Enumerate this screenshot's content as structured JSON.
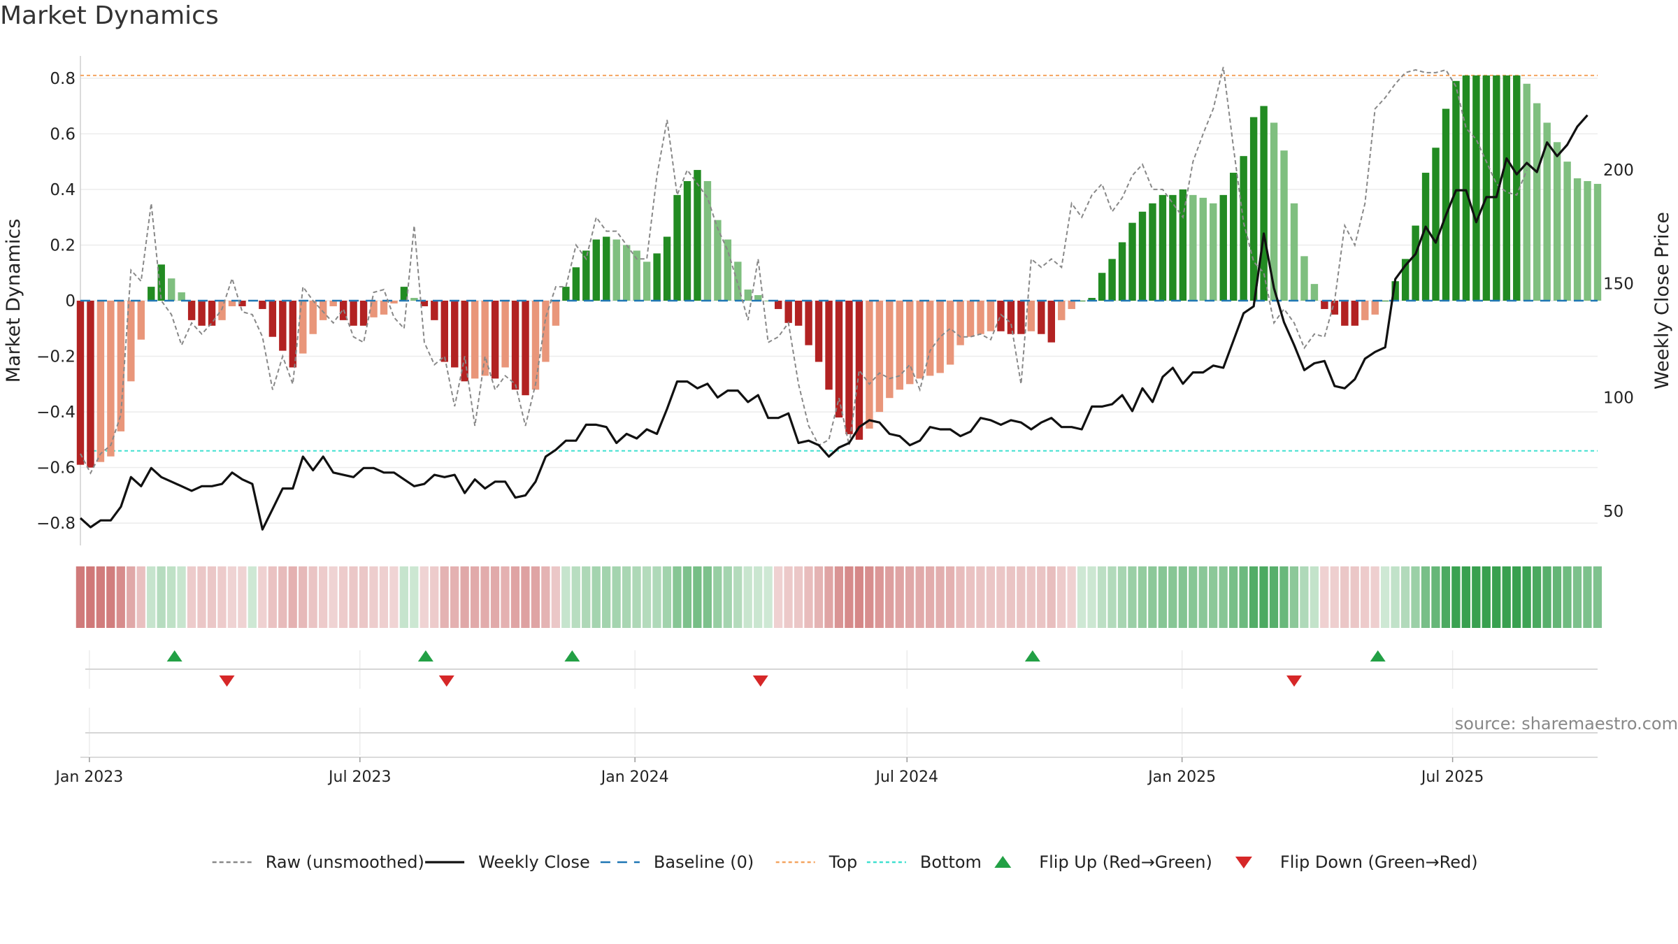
{
  "chart_data": {
    "title": "Market Dynamics",
    "type": "bar",
    "ylabel": "Market Dynamics",
    "y2label": "Weekly Close Price",
    "ylim": [
      -0.88,
      0.88
    ],
    "y2lim": [
      35,
      250
    ],
    "yticks": [
      -0.8,
      -0.6,
      -0.4,
      -0.2,
      0,
      0.2,
      0.4,
      0.6,
      0.8
    ],
    "y2ticks": [
      50,
      100,
      150,
      200
    ],
    "x_start": "2022-12-26",
    "x_end": "2025-10-06",
    "x_interval_days": 7,
    "xticks": [
      {
        "date": "2023-01-01",
        "label": "Jan 2023"
      },
      {
        "date": "2023-07-01",
        "label": "Jul 2023"
      },
      {
        "date": "2024-01-01",
        "label": "Jan 2024"
      },
      {
        "date": "2024-07-01",
        "label": "Jul 2024"
      },
      {
        "date": "2025-01-01",
        "label": "Jan 2025"
      },
      {
        "date": "2025-07-01",
        "label": "Jul 2025"
      }
    ],
    "top_line": 0.81,
    "bottom_line": -0.54,
    "baseline": 0,
    "grid": true,
    "legend_position": "bottom-center",
    "colors": {
      "strong_green": "#228b22",
      "light_green": "#7fbf7f",
      "strong_red": "#b22222",
      "light_red": "#e9967a",
      "close_line": "#111111",
      "raw_line": "#888888",
      "baseline": "#1f77b4",
      "top": "#f4a460",
      "bottom": "#40e0d0",
      "flip_up": "#22a045",
      "flip_down": "#d62728"
    },
    "series": [
      {
        "name": "Market Dynamics",
        "values": [
          -0.59,
          -0.6,
          -0.58,
          -0.56,
          -0.47,
          -0.29,
          -0.14,
          0.05,
          0.13,
          0.08,
          0.03,
          -0.07,
          -0.09,
          -0.09,
          -0.07,
          -0.02,
          -0.02,
          -0.0,
          -0.03,
          -0.13,
          -0.18,
          -0.24,
          -0.19,
          -0.12,
          -0.07,
          -0.02,
          -0.07,
          -0.09,
          -0.09,
          -0.06,
          -0.05,
          -0.01,
          0.05,
          0.01,
          -0.02,
          -0.07,
          -0.22,
          -0.24,
          -0.29,
          -0.28,
          -0.27,
          -0.28,
          -0.24,
          -0.32,
          -0.34,
          -0.32,
          -0.22,
          -0.09,
          0.05,
          0.12,
          0.18,
          0.22,
          0.23,
          0.22,
          0.2,
          0.18,
          0.14,
          0.17,
          0.23,
          0.38,
          0.43,
          0.47,
          0.43,
          0.29,
          0.22,
          0.14,
          0.04,
          0.02,
          -0.0,
          -0.03,
          -0.08,
          -0.09,
          -0.16,
          -0.22,
          -0.32,
          -0.42,
          -0.48,
          -0.5,
          -0.46,
          -0.4,
          -0.35,
          -0.32,
          -0.3,
          -0.28,
          -0.27,
          -0.26,
          -0.23,
          -0.16,
          -0.13,
          -0.12,
          -0.11,
          -0.11,
          -0.12,
          -0.12,
          -0.11,
          -0.12,
          -0.15,
          -0.07,
          -0.03,
          0.0,
          0.01,
          0.1,
          0.15,
          0.21,
          0.28,
          0.32,
          0.35,
          0.38,
          0.38,
          0.4,
          0.38,
          0.37,
          0.35,
          0.38,
          0.46,
          0.52,
          0.66,
          0.7,
          0.64,
          0.54,
          0.35,
          0.16,
          0.06,
          -0.03,
          -0.05,
          -0.09,
          -0.09,
          -0.07,
          -0.05,
          -0.0,
          0.07,
          0.15,
          0.27,
          0.46,
          0.55,
          0.69,
          0.79,
          0.81,
          0.81,
          0.81,
          0.81,
          0.81,
          0.81,
          0.78,
          0.71,
          0.64,
          0.57,
          0.5,
          0.44,
          0.43,
          0.42
        ]
      },
      {
        "name": "Raw (unsmoothed)",
        "values": [
          -0.55,
          -0.62,
          -0.55,
          -0.52,
          -0.41,
          0.11,
          0.07,
          0.35,
          0.0,
          -0.05,
          -0.16,
          -0.08,
          -0.12,
          -0.08,
          -0.03,
          0.08,
          -0.04,
          -0.05,
          -0.13,
          -0.32,
          -0.2,
          -0.3,
          0.05,
          0.0,
          -0.04,
          -0.08,
          -0.03,
          -0.13,
          -0.15,
          0.03,
          0.04,
          -0.06,
          -0.1,
          0.27,
          -0.15,
          -0.23,
          -0.2,
          -0.38,
          -0.2,
          -0.45,
          -0.2,
          -0.32,
          -0.27,
          -0.3,
          -0.45,
          -0.3,
          -0.06,
          0.05,
          0.05,
          0.2,
          0.15,
          0.3,
          0.25,
          0.25,
          0.2,
          0.15,
          0.15,
          0.45,
          0.65,
          0.38,
          0.47,
          0.42,
          0.37,
          0.26,
          0.18,
          0.06,
          -0.07,
          0.15,
          -0.15,
          -0.13,
          -0.08,
          -0.3,
          -0.45,
          -0.52,
          -0.5,
          -0.35,
          -0.52,
          -0.25,
          -0.3,
          -0.26,
          -0.28,
          -0.27,
          -0.23,
          -0.32,
          -0.18,
          -0.13,
          -0.1,
          -0.13,
          -0.13,
          -0.12,
          -0.14,
          -0.05,
          -0.08,
          -0.3,
          0.15,
          0.12,
          0.15,
          0.12,
          0.35,
          0.3,
          0.38,
          0.42,
          0.32,
          0.37,
          0.45,
          0.49,
          0.4,
          0.4,
          0.35,
          0.3,
          0.5,
          0.6,
          0.69,
          0.84,
          0.55,
          0.28,
          0.14,
          0.1,
          -0.08,
          -0.03,
          -0.08,
          -0.17,
          -0.12,
          -0.13,
          0.0,
          0.27,
          0.2,
          0.35,
          0.69,
          0.73,
          0.78,
          0.82,
          0.83,
          0.82,
          0.82,
          0.83,
          0.77,
          0.62,
          0.58,
          0.5,
          0.42,
          0.39,
          0.38,
          0.47
        ]
      },
      {
        "name": "Weekly Close",
        "values": [
          47,
          43,
          46,
          46,
          52,
          65,
          61,
          69,
          65,
          63,
          61,
          59,
          61,
          61,
          62,
          67,
          64,
          62,
          42,
          51,
          60,
          60,
          74,
          68,
          74,
          67,
          66,
          65,
          69,
          69,
          67,
          67,
          64,
          61,
          62,
          66,
          65,
          66,
          58,
          64,
          60,
          63,
          63,
          56,
          57,
          63,
          74,
          77,
          81,
          81,
          88,
          88,
          87,
          80,
          84,
          82,
          86,
          84,
          95,
          107,
          107,
          104,
          106,
          100,
          103,
          103,
          98,
          101,
          91,
          91,
          93,
          80,
          81,
          79,
          74,
          78,
          80,
          87,
          90,
          89,
          84,
          83,
          79,
          81,
          87,
          86,
          86,
          83,
          85,
          91,
          90,
          88,
          90,
          89,
          86,
          89,
          91,
          87,
          87,
          86,
          96,
          96,
          97,
          101,
          94,
          104,
          98,
          109,
          113,
          106,
          111,
          111,
          114,
          113,
          125,
          137,
          140,
          172,
          148,
          133,
          123,
          112,
          115,
          116,
          105,
          104,
          108,
          117,
          120,
          122,
          152,
          158,
          163,
          175,
          168,
          180,
          191,
          191,
          177,
          188,
          188,
          205,
          198,
          203,
          199,
          212,
          206,
          211,
          219,
          224
        ]
      }
    ],
    "flips_up": [
      "2023-02-27",
      "2023-08-14",
      "2023-11-20",
      "2024-09-23",
      "2025-05-12"
    ],
    "flips_down": [
      "2023-04-03",
      "2023-08-28",
      "2024-03-25",
      "2025-03-17"
    ],
    "regime_strip": [
      -0.59,
      -0.6,
      -0.58,
      -0.56,
      -0.47,
      -0.29,
      -0.14,
      0.05,
      0.13,
      0.08,
      0.03,
      -0.07,
      -0.09,
      -0.09,
      -0.07,
      -0.02,
      -0.02,
      -0.0,
      -0.03,
      -0.13,
      -0.18,
      -0.24,
      -0.19,
      -0.12,
      -0.07,
      -0.02,
      -0.07,
      -0.09,
      -0.09,
      -0.06,
      -0.05,
      -0.01,
      0.05,
      0.01,
      -0.02,
      -0.07,
      -0.22,
      -0.24,
      -0.29,
      -0.28,
      -0.27,
      -0.28,
      -0.24,
      -0.32,
      -0.34,
      -0.32,
      -0.22,
      -0.09,
      0.05,
      0.12,
      0.18,
      0.22,
      0.23,
      0.22,
      0.2,
      0.18,
      0.14,
      0.17,
      0.23,
      0.38,
      0.43,
      0.47,
      0.43,
      0.29,
      0.22,
      0.14,
      0.04,
      0.02,
      -0.0,
      -0.03,
      -0.08,
      -0.09,
      -0.16,
      -0.22,
      -0.32,
      -0.42,
      -0.48,
      -0.5,
      -0.46,
      -0.4,
      -0.35,
      -0.32,
      -0.3,
      -0.28,
      -0.27,
      -0.26,
      -0.23,
      -0.16,
      -0.13,
      -0.12,
      -0.11,
      -0.11,
      -0.12,
      -0.12,
      -0.11,
      -0.12,
      -0.15,
      -0.07,
      -0.03,
      0.0,
      0.01,
      0.1,
      0.15,
      0.21,
      0.28,
      0.32,
      0.35,
      0.38,
      0.38,
      0.4,
      0.38,
      0.37,
      0.35,
      0.38,
      0.46,
      0.52,
      0.66,
      0.7,
      0.64,
      0.54,
      0.35,
      0.16,
      0.06,
      -0.03,
      -0.05,
      -0.09,
      -0.09,
      -0.07,
      -0.05,
      -0.0,
      0.07,
      0.15,
      0.27,
      0.46,
      0.55,
      0.69,
      0.79,
      0.81,
      0.81,
      0.81,
      0.81,
      0.81,
      0.81,
      0.78,
      0.71,
      0.64,
      0.57,
      0.5,
      0.44,
      0.43,
      0.42
    ],
    "legend": [
      {
        "label": "Raw (unsmoothed)",
        "style": "dashed",
        "color": "#888888"
      },
      {
        "label": "Weekly Close",
        "style": "solid",
        "color": "#111111"
      },
      {
        "label": "Baseline (0)",
        "style": "dashed",
        "color": "#1f77b4"
      },
      {
        "label": "Top",
        "style": "dotted",
        "color": "#f4a460"
      },
      {
        "label": "Bottom",
        "style": "dotted",
        "color": "#40e0d0"
      },
      {
        "label": "Flip Up (Red→Green)",
        "style": "triangle-up",
        "color": "#22a045"
      },
      {
        "label": "Flip Down (Green→Red)",
        "style": "triangle-down",
        "color": "#d62728"
      }
    ],
    "source": "source: sharemaestro.com"
  }
}
